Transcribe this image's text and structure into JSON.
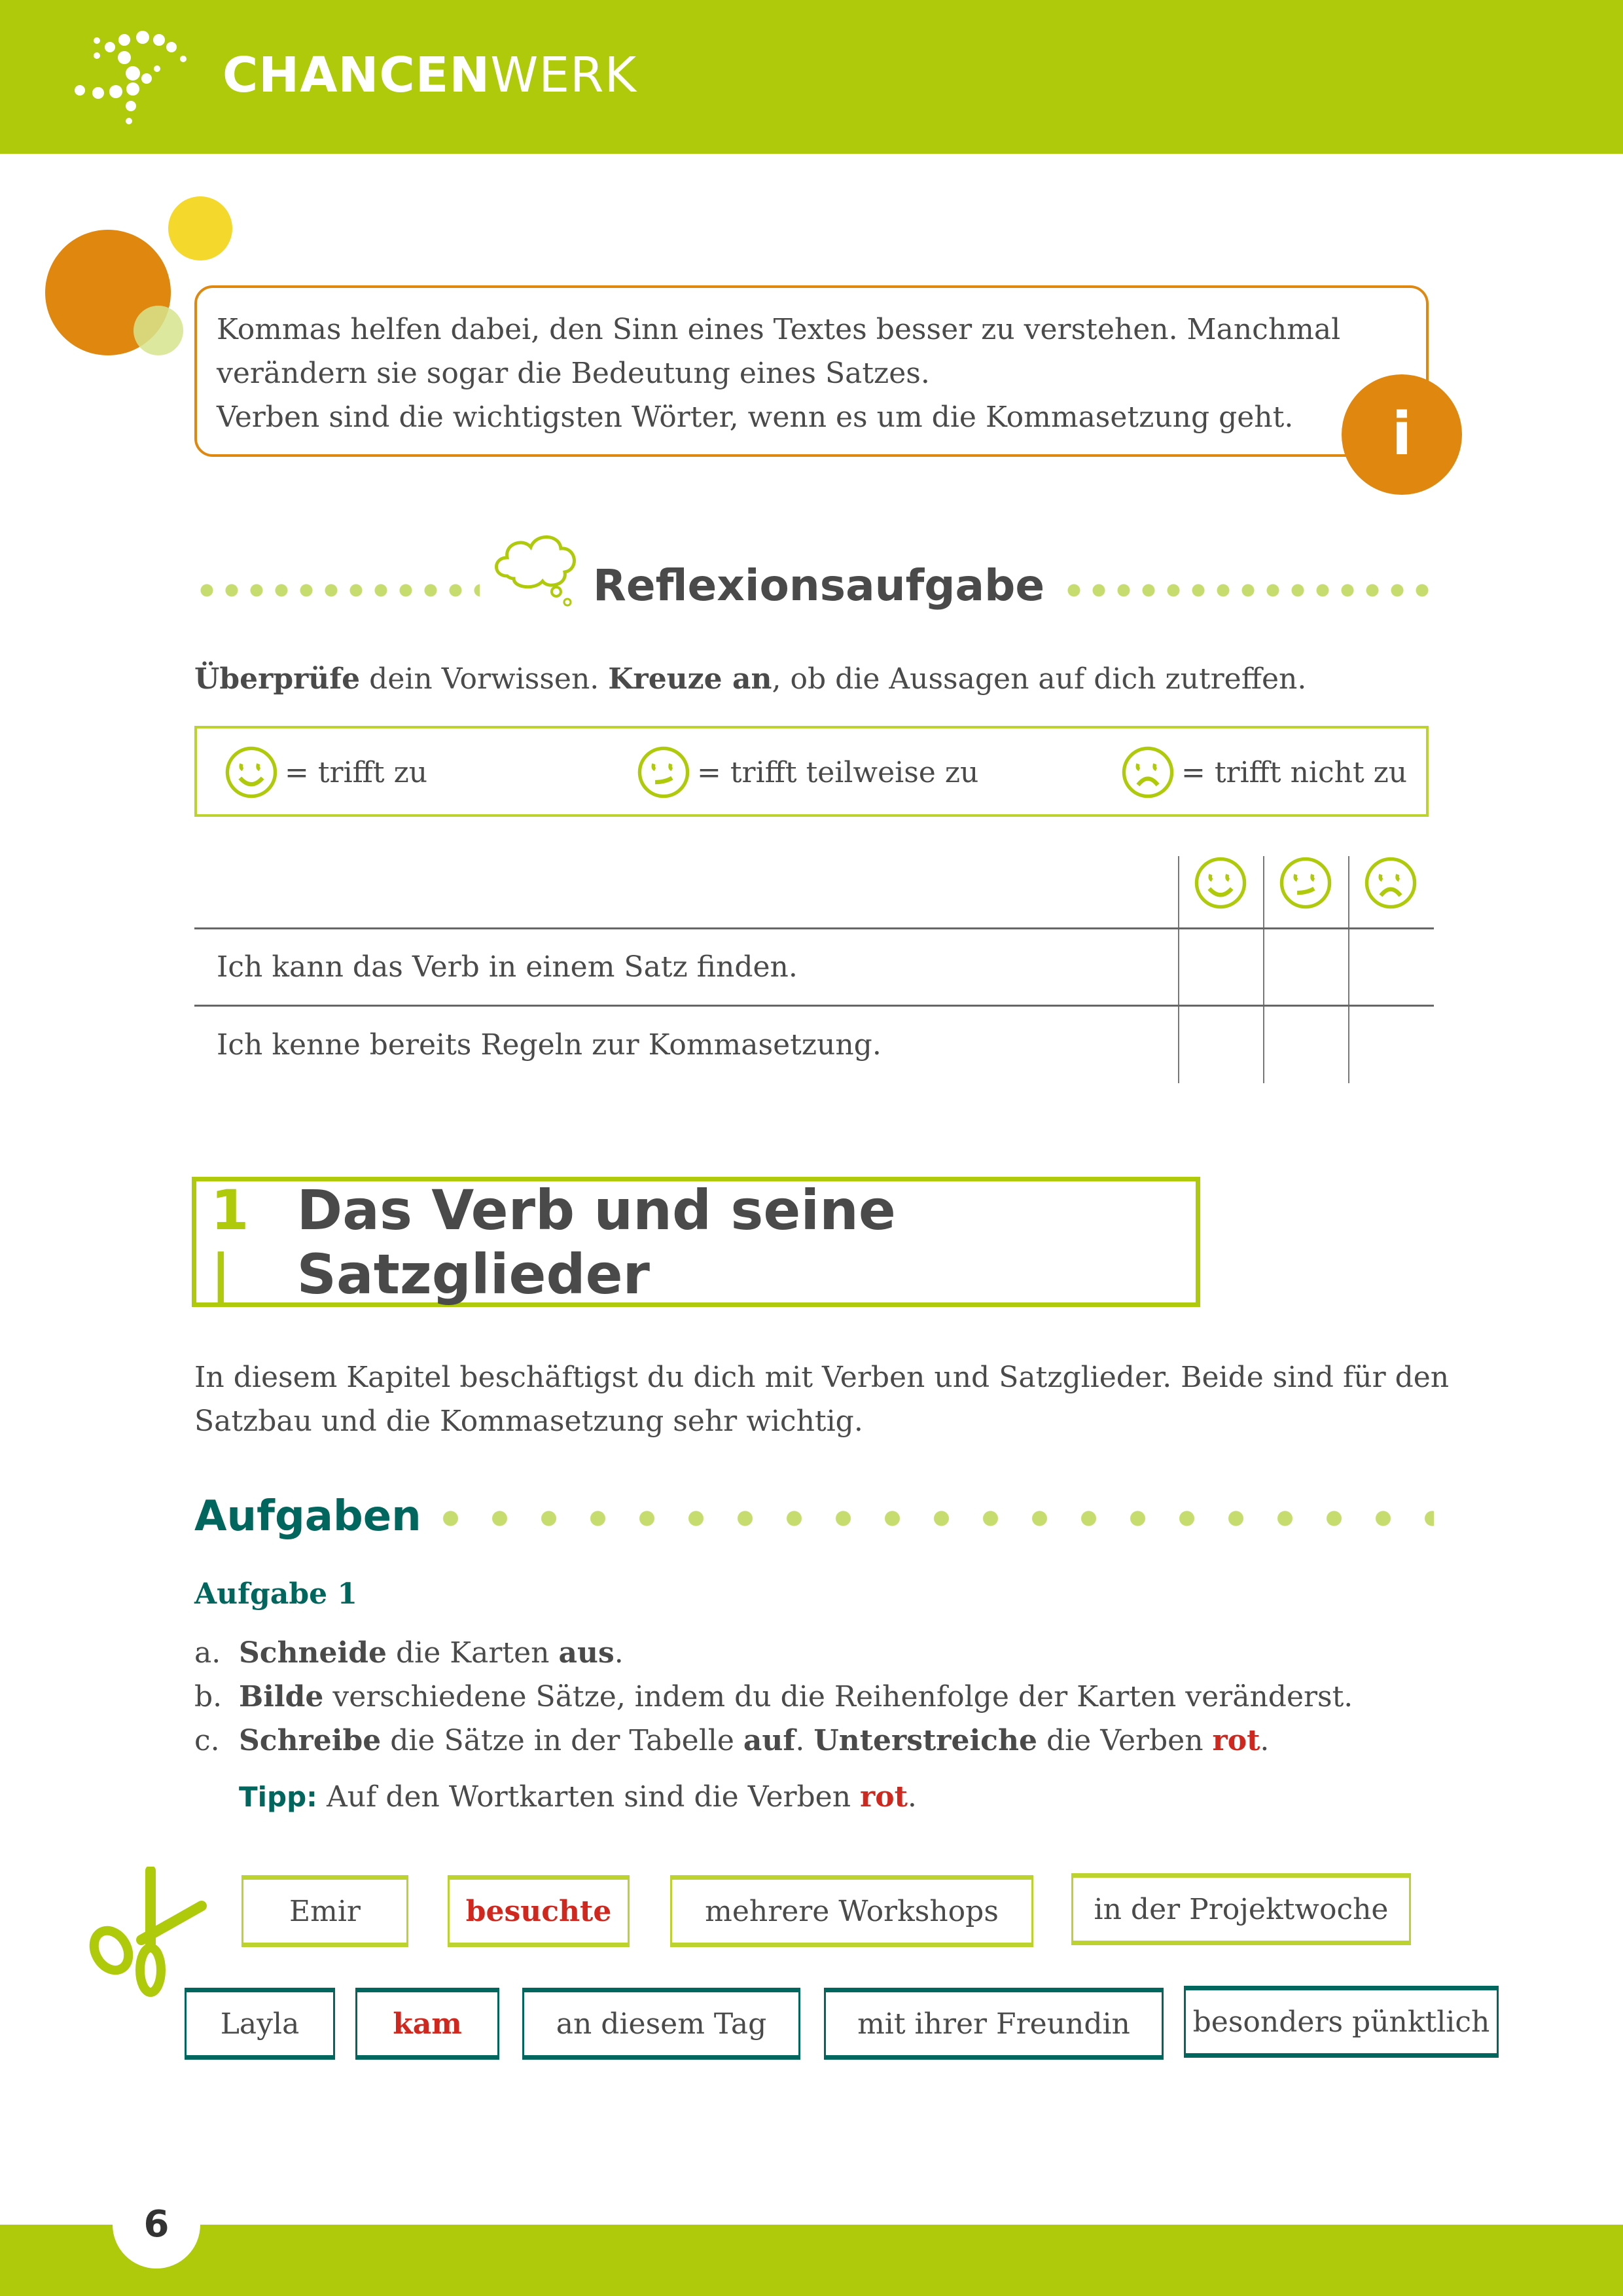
{
  "header": {
    "brand_bold": "CHANCEN",
    "brand_light": "WERK",
    "color": "#afca0b"
  },
  "info": {
    "lines": [
      "Kommas helfen dabei, den Sinn eines Textes besser zu verstehen. Manchmal",
      "verändern sie sogar die Bedeutung eines Satzes.",
      "Verben sind die wichtigsten Wörter, wenn es um die Kommasetzung geht."
    ],
    "icon_label": "i",
    "accent": "#e0870f"
  },
  "reflexion": {
    "title": "Reflexionsaufgabe",
    "instruction": {
      "b1": "Überprüfe",
      "t1": " dein Vorwissen. ",
      "b2": "Kreuze an",
      "t2": ", ob die Aussagen auf dich zutreffen."
    },
    "legend": [
      "= trifft zu",
      "= trifft teilweise zu",
      "= trifft nicht zu"
    ],
    "rows": [
      "Ich kann das Verb in einem Satz finden.",
      "Ich kenne bereits Regeln zur Kommasetzung."
    ]
  },
  "section": {
    "number": "1 |",
    "title": "Das Verb und seine Satzglieder",
    "intro": [
      "In diesem Kapitel beschäftigst du dich mit Verben und Satzglieder. Beide sind für den",
      "Satzbau und die Kommasetzung sehr wichtig."
    ]
  },
  "tasks": {
    "heading": "Aufgaben",
    "task_title": "Aufgabe 1",
    "items": [
      {
        "label": "a.",
        "parts": [
          {
            "b": "Schneide"
          },
          {
            "t": " die Karten "
          },
          {
            "b": "aus"
          },
          {
            "t": "."
          }
        ]
      },
      {
        "label": "b.",
        "parts": [
          {
            "b": "Bilde"
          },
          {
            "t": " verschiedene Sätze, indem du die Reihenfolge der Karten veränderst."
          }
        ]
      },
      {
        "label": "c.",
        "parts": [
          {
            "b": "Schreibe"
          },
          {
            "t": " die Sätze in der Tabelle "
          },
          {
            "b": "auf"
          },
          {
            "t": ". "
          },
          {
            "b": "Unterstreiche"
          },
          {
            "t": " die Verben "
          },
          {
            "r": "rot"
          },
          {
            "t": "."
          }
        ]
      }
    ],
    "tip": {
      "label": "Tipp:",
      "text": " Auf den Wortkarten sind die Verben ",
      "red": "rot",
      "end": "."
    }
  },
  "cards": {
    "row1": [
      {
        "text": "Emir",
        "verb": false
      },
      {
        "text": "besuchte",
        "verb": true
      },
      {
        "text": "mehrere Workshops",
        "verb": false
      },
      {
        "text": "in der Projektwoche",
        "verb": false
      }
    ],
    "row2": [
      {
        "text": "Layla",
        "verb": false
      },
      {
        "text": "kam",
        "verb": true
      },
      {
        "text": "an diesem Tag",
        "verb": false
      },
      {
        "text": "mit ihrer Freundin",
        "verb": false
      },
      {
        "text": "besonders pünktlich",
        "verb": false
      }
    ]
  },
  "footer": {
    "page_number": "6"
  },
  "colors": {
    "green": "#afca0b",
    "teal": "#00665e",
    "red": "#d0281e",
    "orange": "#e0870f",
    "yellow": "#f4d92c"
  }
}
